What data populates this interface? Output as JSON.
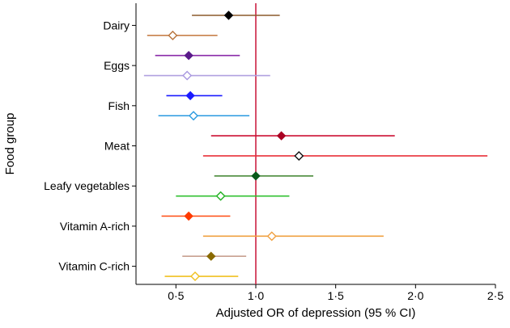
{
  "chart_data": {
    "type": "forest",
    "title": "",
    "xlabel": "Adjusted OR of depression (95 % CI)",
    "ylabel": "Food group",
    "xlim": [
      0.25,
      2.5
    ],
    "x_ticks": [
      "0·5",
      "1·0",
      "1·5",
      "2·0",
      "2·5"
    ],
    "x_tick_values": [
      0.5,
      1.0,
      1.5,
      2.0,
      2.5
    ],
    "reference_line": 1.0,
    "reference_color": "#cc2244",
    "categories": [
      "Dairy",
      "Eggs",
      "Fish",
      "Meat",
      "Leafy vegetables",
      "Vitamin A-rich",
      "Vitamin C-rich"
    ],
    "rows": [
      {
        "category": "Dairy",
        "or": 0.83,
        "lo": 0.6,
        "hi": 1.15,
        "filled": true,
        "color": "#8b5a2b",
        "marker": "#000000"
      },
      {
        "category": "Dairy",
        "or": 0.48,
        "lo": 0.32,
        "hi": 0.76,
        "filled": false,
        "color": "#c8804a",
        "marker": "#b8733b"
      },
      {
        "category": "Eggs",
        "or": 0.58,
        "lo": 0.37,
        "hi": 0.9,
        "filled": true,
        "color": "#8a2aa8",
        "marker": "#5a1a8a"
      },
      {
        "category": "Eggs",
        "or": 0.57,
        "lo": 0.3,
        "hi": 1.09,
        "filled": false,
        "color": "#b0a0e0",
        "marker": "#a898e0"
      },
      {
        "category": "Fish",
        "or": 0.59,
        "lo": 0.44,
        "hi": 0.79,
        "filled": true,
        "color": "#1a1aff",
        "marker": "#1a1aff"
      },
      {
        "category": "Fish",
        "or": 0.61,
        "lo": 0.39,
        "hi": 0.96,
        "filled": false,
        "color": "#2a9ae0",
        "marker": "#2a9ae0"
      },
      {
        "category": "Meat",
        "or": 1.16,
        "lo": 0.72,
        "hi": 1.87,
        "filled": true,
        "color": "#cc1133",
        "marker": "#aa0022"
      },
      {
        "category": "Meat",
        "or": 1.27,
        "lo": 0.67,
        "hi": 2.45,
        "filled": false,
        "color": "#e8303a",
        "marker": "#111111"
      },
      {
        "category": "Leafy vegetables",
        "or": 1.0,
        "lo": 0.74,
        "hi": 1.36,
        "filled": true,
        "color": "#4a8a3a",
        "marker": "#0a5a1a"
      },
      {
        "category": "Leafy vegetables",
        "or": 0.78,
        "lo": 0.5,
        "hi": 1.21,
        "filled": false,
        "color": "#30c030",
        "marker": "#20b020"
      },
      {
        "category": "Vitamin A-rich",
        "or": 0.58,
        "lo": 0.41,
        "hi": 0.84,
        "filled": true,
        "color": "#ff4a10",
        "marker": "#ff3a00"
      },
      {
        "category": "Vitamin A-rich",
        "or": 1.1,
        "lo": 0.67,
        "hi": 1.8,
        "filled": false,
        "color": "#f0a040",
        "marker": "#f0a040"
      },
      {
        "category": "Vitamin C-rich",
        "or": 0.72,
        "lo": 0.54,
        "hi": 0.94,
        "filled": true,
        "color": "#c8a090",
        "marker": "#8a6a00"
      },
      {
        "category": "Vitamin C-rich",
        "or": 0.62,
        "lo": 0.43,
        "hi": 0.89,
        "filled": false,
        "color": "#f0c020",
        "marker": "#f0c020"
      }
    ],
    "grid": false,
    "legend": "none"
  }
}
